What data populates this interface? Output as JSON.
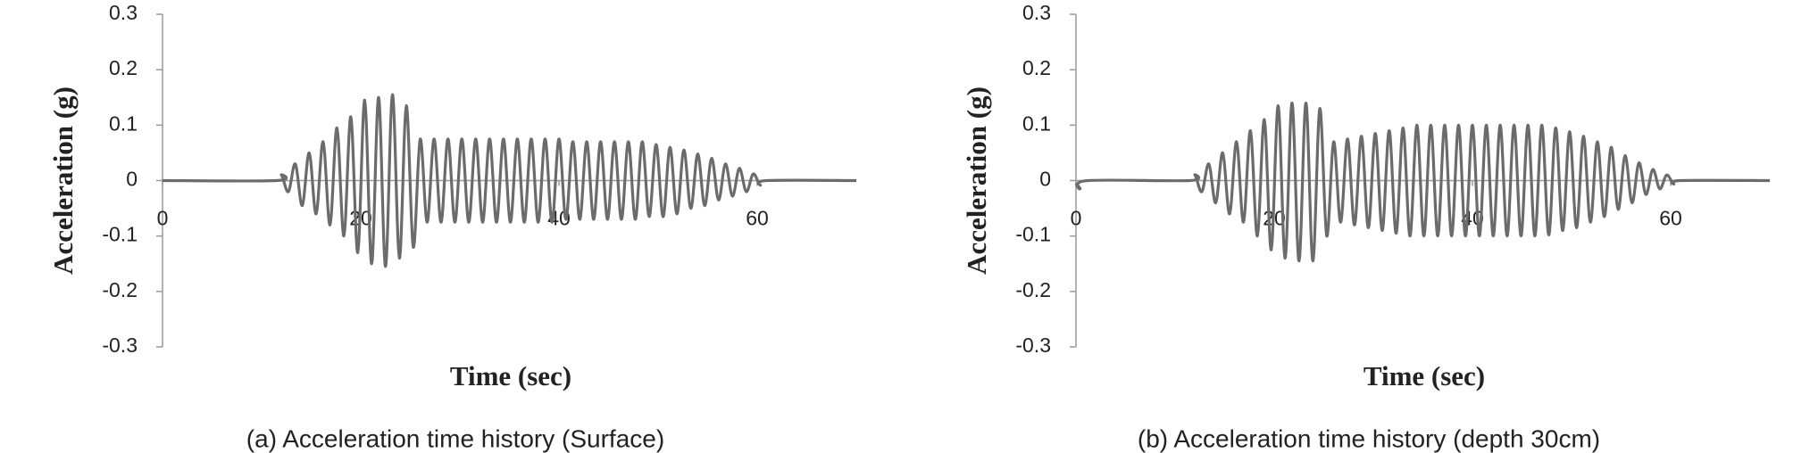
{
  "chart_data": [
    {
      "type": "line",
      "caption": "(a) Acceleration time history (Surface)",
      "xlabel": "Time (sec)",
      "ylabel": "Acceleration (g)",
      "color": "#6b6b6b",
      "xlim": [
        0,
        70
      ],
      "xticks": [
        0,
        20,
        40,
        60
      ],
      "ylim": [
        -0.3,
        0.3
      ],
      "yticks": [
        0.3,
        0.2,
        0.1,
        0,
        -0.1,
        -0.2,
        -0.3
      ],
      "x": [
        0,
        11.5,
        12,
        12.7,
        13.4,
        14.1,
        14.8,
        15.5,
        16.2,
        16.9,
        17.6,
        18.3,
        19,
        19.7,
        20.4,
        21.1,
        21.8,
        22.5,
        23.2,
        23.9,
        24.6,
        25.3,
        26,
        26.7,
        27.4,
        28.1,
        28.8,
        29.5,
        30.2,
        30.9,
        31.6,
        32.3,
        33,
        33.7,
        34.4,
        35.1,
        35.8,
        36.5,
        37.2,
        37.9,
        38.6,
        39.3,
        40,
        40.7,
        41.4,
        42.1,
        42.8,
        43.5,
        44.2,
        44.9,
        45.6,
        46.3,
        47,
        47.7,
        48.4,
        49.1,
        49.8,
        50.5,
        51.2,
        51.9,
        52.6,
        53.3,
        54,
        54.7,
        55.4,
        56.1,
        56.8,
        57.5,
        58.2,
        58.9,
        59.6,
        60.3,
        61,
        70
      ],
      "values": [
        0,
        0,
        0.01,
        -0.02,
        0.03,
        -0.045,
        0.05,
        -0.06,
        0.07,
        -0.08,
        0.095,
        -0.1,
        0.115,
        -0.13,
        0.145,
        -0.15,
        0.15,
        -0.155,
        0.155,
        -0.14,
        0.135,
        -0.12,
        0.075,
        -0.075,
        0.075,
        -0.075,
        0.075,
        -0.075,
        0.075,
        -0.075,
        0.075,
        -0.075,
        0.075,
        -0.075,
        0.075,
        -0.075,
        0.075,
        -0.075,
        0.075,
        -0.075,
        0.075,
        -0.075,
        0.075,
        -0.07,
        0.07,
        -0.07,
        0.07,
        -0.07,
        0.07,
        -0.07,
        0.07,
        -0.07,
        0.07,
        -0.07,
        0.07,
        -0.065,
        0.065,
        -0.065,
        0.06,
        -0.06,
        0.055,
        -0.05,
        0.048,
        -0.045,
        0.04,
        -0.035,
        0.03,
        -0.028,
        0.022,
        -0.02,
        0.012,
        -0.008,
        0,
        0
      ]
    },
    {
      "type": "line",
      "caption": "(b) Acceleration time history (depth 30cm)",
      "xlabel": "Time (sec)",
      "ylabel": "Acceleration (g)",
      "color": "#6b6b6b",
      "xlim": [
        0,
        70
      ],
      "xticks": [
        0,
        20,
        40,
        60
      ],
      "ylim": [
        -0.3,
        0.3
      ],
      "yticks": [
        0.3,
        0.2,
        0.1,
        0,
        -0.1,
        -0.2,
        -0.3
      ],
      "x": [
        0,
        0.4,
        1.2,
        11.5,
        12,
        12.7,
        13.4,
        14.1,
        14.8,
        15.5,
        16.2,
        16.9,
        17.6,
        18.3,
        19,
        19.7,
        20.4,
        21.1,
        21.8,
        22.5,
        23.2,
        23.9,
        24.6,
        25.3,
        26,
        26.7,
        27.4,
        28.1,
        28.8,
        29.5,
        30.2,
        30.9,
        31.6,
        32.3,
        33,
        33.7,
        34.4,
        35.1,
        35.8,
        36.5,
        37.2,
        37.9,
        38.6,
        39.3,
        40,
        40.7,
        41.4,
        42.1,
        42.8,
        43.5,
        44.2,
        44.9,
        45.6,
        46.3,
        47,
        47.7,
        48.4,
        49.1,
        49.8,
        50.5,
        51.2,
        51.9,
        52.6,
        53.3,
        54,
        54.7,
        55.4,
        56.1,
        56.8,
        57.5,
        58.2,
        58.9,
        59.6,
        60.3,
        61,
        70
      ],
      "values": [
        -0.005,
        -0.015,
        0,
        0,
        0.01,
        -0.02,
        0.03,
        -0.04,
        0.05,
        -0.06,
        0.07,
        -0.075,
        0.09,
        -0.1,
        0.11,
        -0.125,
        0.135,
        -0.14,
        0.14,
        -0.145,
        0.14,
        -0.145,
        0.13,
        -0.1,
        0.07,
        -0.075,
        0.075,
        -0.08,
        0.08,
        -0.085,
        0.085,
        -0.09,
        0.09,
        -0.095,
        0.095,
        -0.1,
        0.1,
        -0.1,
        0.1,
        -0.1,
        0.1,
        -0.1,
        0.1,
        -0.1,
        0.1,
        -0.1,
        0.1,
        -0.1,
        0.1,
        -0.1,
        0.1,
        -0.1,
        0.1,
        -0.1,
        0.1,
        -0.098,
        0.095,
        -0.09,
        0.088,
        -0.085,
        0.08,
        -0.075,
        0.07,
        -0.065,
        0.06,
        -0.052,
        0.045,
        -0.04,
        0.032,
        -0.025,
        0.02,
        -0.015,
        0.01,
        -0.006,
        0,
        0
      ]
    }
  ]
}
